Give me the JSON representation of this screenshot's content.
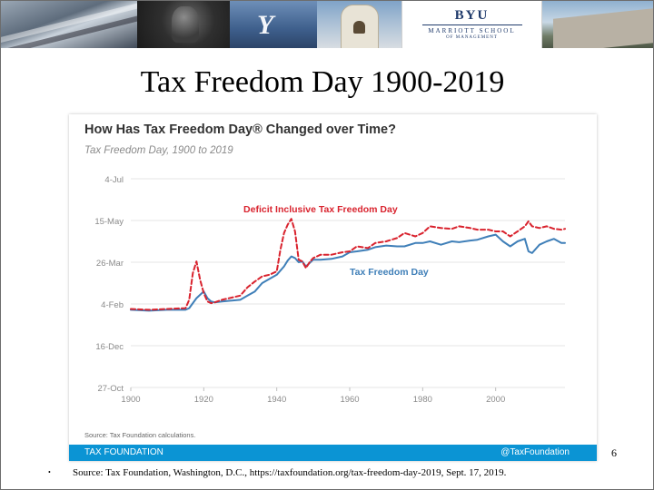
{
  "slide": {
    "title": "Tax Freedom Day 1900-2019",
    "page_number": "6",
    "bullet": "•",
    "source": "Source:  Tax Foundation, Washington, D.C., https://taxfoundation.org/tax-freedom-day-2019, Sept. 17, 2019."
  },
  "banner": {
    "logo_main": "BYU",
    "logo_sub": "MARRIOTT SCHOOL",
    "logo_sub2": "OF MANAGEMENT",
    "icons": [
      "statue-photo",
      "y-mountain-photo",
      "bell-tower-photo",
      "campus-building-photo"
    ]
  },
  "chart_data": {
    "type": "line",
    "title": "How Has Tax Freedom Day® Changed over Time?",
    "subtitle": "Tax Freedom Day, 1900 to 2019",
    "source": "Source: Tax Foundation calculations.",
    "footer_left": "TAX FOUNDATION",
    "footer_right": "@TaxFoundation",
    "x_ticks": [
      "1900",
      "1920",
      "1940",
      "1960",
      "1980",
      "2000"
    ],
    "y_ticks": [
      "4-Jul",
      "15-May",
      "26-Mar",
      "4-Feb",
      "16-Dec",
      "27-Oct"
    ],
    "y_tick_days": [
      185,
      135,
      85,
      35,
      -15,
      -65
    ],
    "xlim": [
      1900,
      2019
    ],
    "ylim": [
      -65,
      185
    ],
    "grid": true,
    "y_unit": "days after Jan 1",
    "colors": {
      "tfd": "#3f7fb8",
      "deficit": "#d9232e",
      "title": "#333333",
      "axis_text": "#8a8a8a",
      "grid": "#e4e4e4"
    },
    "series": [
      {
        "name": "Tax Freedom Day",
        "style": "solid",
        "x": [
          1900,
          1905,
          1910,
          1915,
          1916,
          1917,
          1918,
          1919,
          1920,
          1921,
          1922,
          1923,
          1925,
          1930,
          1932,
          1934,
          1936,
          1938,
          1940,
          1941,
          1942,
          1943,
          1944,
          1945,
          1946,
          1947,
          1948,
          1949,
          1950,
          1952,
          1955,
          1958,
          1960,
          1962,
          1965,
          1967,
          1970,
          1973,
          1975,
          1978,
          1980,
          1982,
          1985,
          1988,
          1990,
          1993,
          1995,
          1998,
          2000,
          2002,
          2004,
          2006,
          2008,
          2009,
          2010,
          2012,
          2014,
          2016,
          2018,
          2019
        ],
        "y": [
          28,
          27,
          28,
          28,
          30,
          36,
          42,
          46,
          50,
          42,
          38,
          37,
          38,
          40,
          45,
          50,
          60,
          65,
          70,
          75,
          80,
          87,
          92,
          90,
          85,
          86,
          80,
          84,
          88,
          88,
          89,
          92,
          97,
          98,
          100,
          103,
          105,
          104,
          104,
          108,
          108,
          110,
          106,
          110,
          109,
          111,
          112,
          116,
          118,
          110,
          104,
          110,
          113,
          98,
          96,
          106,
          110,
          113,
          108,
          108
        ]
      },
      {
        "name": "Deficit Inclusive Tax Freedom Day",
        "style": "dashed",
        "x": [
          1900,
          1905,
          1910,
          1915,
          1916,
          1917,
          1918,
          1919,
          1920,
          1921,
          1922,
          1923,
          1925,
          1930,
          1932,
          1934,
          1936,
          1938,
          1940,
          1941,
          1942,
          1943,
          1944,
          1945,
          1946,
          1947,
          1948,
          1949,
          1950,
          1952,
          1955,
          1958,
          1960,
          1962,
          1965,
          1967,
          1970,
          1973,
          1975,
          1978,
          1980,
          1982,
          1985,
          1988,
          1990,
          1993,
          1995,
          1998,
          2000,
          2002,
          2004,
          2006,
          2008,
          2009,
          2010,
          2012,
          2014,
          2016,
          2018,
          2019
        ],
        "y": [
          29,
          28,
          29,
          30,
          40,
          72,
          86,
          64,
          48,
          38,
          36,
          37,
          40,
          45,
          55,
          62,
          68,
          70,
          74,
          100,
          120,
          130,
          137,
          122,
          88,
          86,
          78,
          85,
          90,
          94,
          94,
          97,
          98,
          104,
          102,
          108,
          110,
          114,
          120,
          116,
          120,
          128,
          126,
          125,
          128,
          126,
          124,
          124,
          122,
          122,
          116,
          122,
          128,
          134,
          128,
          126,
          128,
          125,
          124,
          125
        ]
      }
    ],
    "annotations": [
      {
        "text": "Deficit Inclusive Tax Freedom Day",
        "x": 1952,
        "y": 145,
        "color": "red"
      },
      {
        "text": "Tax Freedom Day",
        "x": 1960,
        "y": 70,
        "color": "blue"
      }
    ]
  }
}
